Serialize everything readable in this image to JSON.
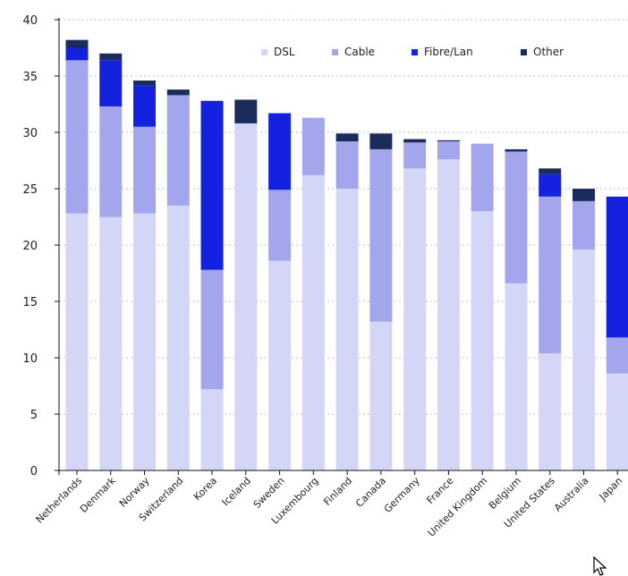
{
  "chart_data": {
    "type": "bar",
    "stacked": true,
    "title": "",
    "xlabel": "",
    "ylabel": "",
    "ylim": [
      0,
      40
    ],
    "yticks": [
      0,
      5,
      10,
      15,
      20,
      25,
      30,
      35,
      40
    ],
    "grid": true,
    "legend_position": "top-right",
    "categories": [
      "Netherlands",
      "Denmark",
      "Norway",
      "Switzerland",
      "Korea",
      "Iceland",
      "Sweden",
      "Luxembourg",
      "Finland",
      "Canada",
      "Germany",
      "France",
      "United Kingdom",
      "Belgium",
      "United States",
      "Australia",
      "Japan"
    ],
    "series": [
      {
        "name": "DSL",
        "color": "#d4d6f7",
        "values": [
          22.8,
          22.5,
          22.8,
          23.5,
          7.2,
          30.8,
          18.6,
          26.2,
          25.0,
          13.2,
          26.8,
          27.6,
          23.0,
          16.6,
          10.4,
          19.6,
          8.6
        ]
      },
      {
        "name": "Cable",
        "color": "#a3a6ec",
        "values": [
          13.6,
          9.8,
          7.7,
          9.8,
          10.6,
          0.0,
          6.3,
          5.1,
          4.2,
          15.3,
          2.3,
          1.6,
          6.0,
          11.7,
          13.9,
          4.3,
          3.2
        ]
      },
      {
        "name": "Fibre/Lan",
        "color": "#1422e0",
        "values": [
          1.1,
          4.1,
          3.7,
          0.0,
          15.0,
          0.0,
          6.8,
          0.0,
          0.0,
          0.0,
          0.0,
          0.0,
          0.0,
          0.0,
          2.0,
          0.0,
          12.5
        ]
      },
      {
        "name": "Other",
        "color": "#1a2b5c",
        "values": [
          0.7,
          0.6,
          0.4,
          0.5,
          0.0,
          2.1,
          0.0,
          0.0,
          0.7,
          1.4,
          0.3,
          0.1,
          0.0,
          0.2,
          0.5,
          1.1,
          0.0
        ]
      }
    ]
  },
  "colors": {
    "axis": "#111111",
    "grid": "#bbbbbb"
  },
  "icons": {
    "cursor": "cursor-arrow-icon"
  }
}
